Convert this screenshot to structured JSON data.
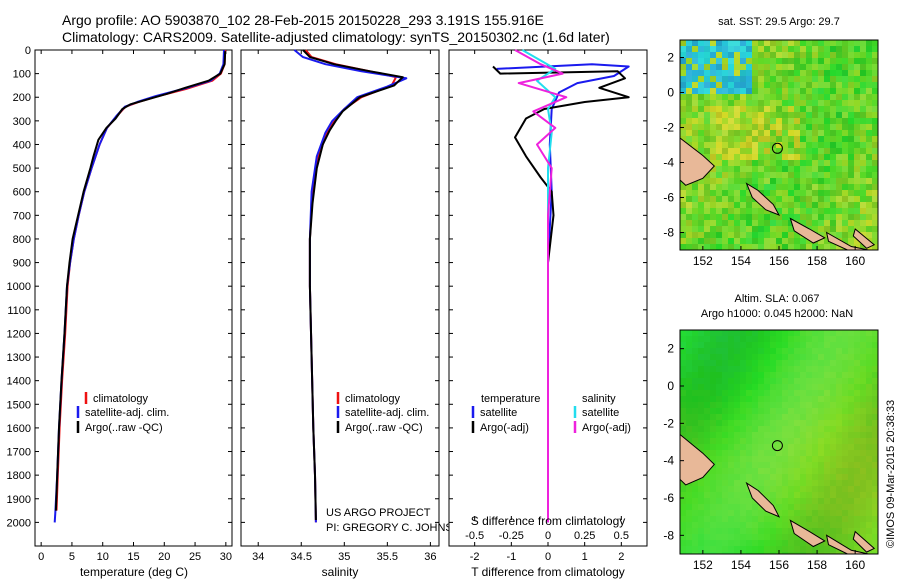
{
  "header": {
    "title_line1": "Argo profile: AO 5903870_102 28-Feb-2015 20150228_293 3.191S 155.916E",
    "title_line2": "Climatology: CARS2009. Satellite-adjusted climatology: synTS_20150302.nc (1.6d later)"
  },
  "credits": {
    "project": "US ARGO PROJECT",
    "pi": "PI: GREGORY C. JOHNSON",
    "stamp": "©IMOS 09-Mar-2015 20:38:33"
  },
  "colors": {
    "climatology": "#ee1111",
    "satellite": "#1a1aee",
    "argo": "#000000",
    "satellite_s": "#22ddee",
    "argo_s": "#ee22dd",
    "land": "#e8b898"
  },
  "chart_data": [
    {
      "type": "line",
      "id": "temperature",
      "xlabel": "temperature (deg C)",
      "ylabel": "",
      "xlim": [
        -1,
        31
      ],
      "ylim": [
        2100,
        0
      ],
      "xticks": [
        0,
        5,
        10,
        15,
        20,
        25,
        30
      ],
      "xtick_labels": [
        "0",
        "5",
        "10",
        "15",
        "20",
        "25",
        "30"
      ],
      "yticks": [
        0,
        100,
        200,
        300,
        400,
        500,
        600,
        700,
        800,
        900,
        1000,
        1100,
        1200,
        1300,
        1400,
        1500,
        1600,
        1700,
        1800,
        1900,
        2000
      ],
      "ytick_labels": [
        "0",
        "100",
        "200",
        "300",
        "400",
        "500",
        "600",
        "700",
        "800",
        "900",
        "1000",
        "1100",
        "1200",
        "1300",
        "1400",
        "1500",
        "1600",
        "1700",
        "1800",
        "1900",
        "2000"
      ],
      "legend": [
        "climatology",
        "satellite-adj. clim.",
        "Argo(..raw -QC)"
      ],
      "series": [
        {
          "name": "climatology",
          "color": "#ee1111",
          "points": [
            [
              29.9,
              0
            ],
            [
              29.8,
              60
            ],
            [
              29.2,
              100
            ],
            [
              27.8,
              130
            ],
            [
              23.5,
              165
            ],
            [
              19.0,
              195
            ],
            [
              15.8,
              220
            ],
            [
              13.7,
              240
            ],
            [
              12.3,
              280
            ],
            [
              10.7,
              330
            ],
            [
              9.5,
              400
            ],
            [
              8.2,
              500
            ],
            [
              7.0,
              600
            ],
            [
              6.1,
              700
            ],
            [
              5.3,
              800
            ],
            [
              4.7,
              900
            ],
            [
              4.3,
              1000
            ],
            [
              3.9,
              1200
            ],
            [
              3.4,
              1400
            ],
            [
              3.0,
              1600
            ],
            [
              2.7,
              1800
            ],
            [
              2.5,
              1950
            ]
          ]
        },
        {
          "name": "satellite-adj. clim.",
          "color": "#1a1aee",
          "points": [
            [
              29.7,
              0
            ],
            [
              29.6,
              60
            ],
            [
              29.0,
              100
            ],
            [
              27.5,
              130
            ],
            [
              23.0,
              165
            ],
            [
              18.6,
              195
            ],
            [
              15.6,
              220
            ],
            [
              13.6,
              240
            ],
            [
              12.2,
              280
            ],
            [
              10.7,
              330
            ],
            [
              9.5,
              400
            ],
            [
              8.2,
              500
            ],
            [
              7.0,
              600
            ],
            [
              6.1,
              700
            ],
            [
              5.3,
              800
            ],
            [
              4.7,
              900
            ],
            [
              4.2,
              1000
            ],
            [
              3.8,
              1200
            ],
            [
              3.3,
              1400
            ],
            [
              2.9,
              1600
            ],
            [
              2.6,
              1800
            ],
            [
              2.3,
              1960
            ],
            [
              2.2,
              2000
            ]
          ]
        },
        {
          "name": "Argo(..raw -QC)",
          "color": "#000000",
          "points": [
            [
              29.9,
              5
            ],
            [
              29.8,
              60
            ],
            [
              29.1,
              100
            ],
            [
              27.2,
              130
            ],
            [
              23.4,
              160
            ],
            [
              20.5,
              185
            ],
            [
              17.2,
              210
            ],
            [
              14.5,
              230
            ],
            [
              13.2,
              250
            ],
            [
              12.1,
              290
            ],
            [
              10.6,
              330
            ],
            [
              9.3,
              380
            ],
            [
              8.5,
              450
            ],
            [
              8.0,
              500
            ],
            [
              6.9,
              600
            ],
            [
              6.0,
              700
            ],
            [
              5.1,
              800
            ],
            [
              4.6,
              900
            ],
            [
              4.2,
              1000
            ],
            [
              3.8,
              1200
            ],
            [
              3.3,
              1400
            ],
            [
              2.9,
              1600
            ],
            [
              2.6,
              1800
            ],
            [
              2.4,
              1950
            ]
          ]
        }
      ]
    },
    {
      "type": "line",
      "id": "salinity",
      "xlabel": "salinity",
      "xlim": [
        33.8,
        36.1
      ],
      "ylim": [
        2100,
        0
      ],
      "xticks": [
        34,
        34.5,
        35,
        35.5,
        36
      ],
      "xtick_labels": [
        "34",
        "34.5",
        "35",
        "35.5",
        "36"
      ],
      "legend": [
        "climatology",
        "satellite-adj. clim.",
        "Argo(..raw -QC)"
      ],
      "series": [
        {
          "name": "climatology",
          "color": "#ee1111",
          "points": [
            [
              34.55,
              0
            ],
            [
              34.62,
              30
            ],
            [
              34.9,
              60
            ],
            [
              35.3,
              90
            ],
            [
              35.6,
              115
            ],
            [
              35.55,
              150
            ],
            [
              35.2,
              200
            ],
            [
              35.0,
              250
            ],
            [
              34.88,
              300
            ],
            [
              34.8,
              350
            ],
            [
              34.7,
              450
            ],
            [
              34.63,
              600
            ],
            [
              34.6,
              800
            ],
            [
              34.6,
              1000
            ],
            [
              34.62,
              1300
            ],
            [
              34.64,
              1600
            ],
            [
              34.66,
              1800
            ],
            [
              34.67,
              2000
            ]
          ]
        },
        {
          "name": "satellite-adj. clim.",
          "color": "#1a1aee",
          "points": [
            [
              34.42,
              0
            ],
            [
              34.52,
              30
            ],
            [
              34.78,
              60
            ],
            [
              35.2,
              90
            ],
            [
              35.72,
              120
            ],
            [
              35.5,
              155
            ],
            [
              35.15,
              200
            ],
            [
              35.0,
              250
            ],
            [
              34.86,
              300
            ],
            [
              34.78,
              350
            ],
            [
              34.68,
              450
            ],
            [
              34.62,
              600
            ],
            [
              34.6,
              800
            ],
            [
              34.6,
              1000
            ],
            [
              34.62,
              1300
            ],
            [
              34.64,
              1600
            ],
            [
              34.66,
              1800
            ],
            [
              34.67,
              2000
            ]
          ]
        },
        {
          "name": "Argo(..raw -QC)",
          "color": "#000000",
          "points": [
            [
              34.52,
              0
            ],
            [
              34.6,
              30
            ],
            [
              34.88,
              60
            ],
            [
              35.3,
              90
            ],
            [
              35.68,
              115
            ],
            [
              35.58,
              150
            ],
            [
              35.18,
              200
            ],
            [
              34.98,
              260
            ],
            [
              34.9,
              300
            ],
            [
              34.83,
              340
            ],
            [
              34.75,
              400
            ],
            [
              34.68,
              500
            ],
            [
              34.63,
              650
            ],
            [
              34.6,
              800
            ],
            [
              34.6,
              1000
            ],
            [
              34.62,
              1300
            ],
            [
              34.64,
              1600
            ],
            [
              34.66,
              1800
            ],
            [
              34.67,
              1990
            ]
          ]
        }
      ]
    },
    {
      "type": "line",
      "id": "difference",
      "xlabel_top": "S difference from climatology",
      "xlabel": "T difference from climatology",
      "xlim": [
        -2.7,
        2.7
      ],
      "ylim": [
        2100,
        0
      ],
      "xticks": [
        -2,
        -1,
        0,
        1,
        2
      ],
      "xtick_labels": [
        "-2",
        "-1",
        "0",
        "1",
        "2"
      ],
      "xticks_top": [
        -2,
        -1,
        0,
        1,
        2
      ],
      "xtick_labels_top": [
        "-0.5",
        "-0.25",
        "0",
        "0.25",
        "0.5"
      ],
      "legend_left_title": "temperature",
      "legend_right_title": "salinity",
      "legend": [
        "satellite",
        "Argo(-adj)",
        "satellite",
        "Argo(-adj)"
      ],
      "series": [
        {
          "name": "T satellite",
          "color": "#1a1aee",
          "points": [
            [
              -1.4,
              80
            ],
            [
              1.2,
              60
            ],
            [
              2.2,
              70
            ],
            [
              1.8,
              110
            ],
            [
              0.8,
              140
            ],
            [
              0.3,
              180
            ],
            [
              0.1,
              250
            ],
            [
              0.05,
              400
            ],
            [
              0.1,
              600
            ],
            [
              0.0,
              900
            ],
            [
              0.0,
              1400
            ],
            [
              0.0,
              2000
            ]
          ]
        },
        {
          "name": "T Argo(-adj)",
          "color": "#000000",
          "points": [
            [
              -1.5,
              70
            ],
            [
              -1.3,
              100
            ],
            [
              1.9,
              90
            ],
            [
              2.1,
              120
            ],
            [
              1.4,
              160
            ],
            [
              2.2,
              200
            ],
            [
              1.0,
              220
            ],
            [
              -0.1,
              250
            ],
            [
              -0.6,
              290
            ],
            [
              -0.9,
              370
            ],
            [
              -0.6,
              450
            ],
            [
              -0.2,
              540
            ],
            [
              0.1,
              600
            ],
            [
              0.15,
              700
            ],
            [
              0.0,
              900
            ],
            [
              0.0,
              1400
            ],
            [
              0.0,
              1995
            ]
          ]
        },
        {
          "name": "S satellite",
          "color": "#22ddee",
          "points": [
            [
              -0.7,
              0
            ],
            [
              0.2,
              80
            ],
            [
              -0.3,
              130
            ],
            [
              0.2,
              200
            ],
            [
              0.0,
              250
            ],
            [
              0.1,
              350
            ],
            [
              0.0,
              500
            ],
            [
              0.0,
              900
            ],
            [
              0.0,
              1400
            ],
            [
              0.0,
              2000
            ]
          ]
        },
        {
          "name": "S Argo(-adj)",
          "color": "#ee22dd",
          "points": [
            [
              -0.9,
              0
            ],
            [
              -0.2,
              60
            ],
            [
              0.4,
              100
            ],
            [
              -0.8,
              140
            ],
            [
              0.5,
              200
            ],
            [
              -0.4,
              260
            ],
            [
              0.2,
              330
            ],
            [
              -0.3,
              400
            ],
            [
              0.1,
              500
            ],
            [
              0.0,
              700
            ],
            [
              0.0,
              1000
            ],
            [
              0.0,
              1500
            ],
            [
              0.0,
              2000
            ]
          ]
        }
      ]
    },
    {
      "type": "heatmap",
      "id": "sst_map",
      "title": "sat. SST: 29.5 Argo: 29.7",
      "xlim": [
        150.8,
        161.2
      ],
      "ylim": [
        -9.0,
        3.0
      ],
      "xticks": [
        152,
        154,
        156,
        158,
        160
      ],
      "xtick_labels": [
        "152",
        "154",
        "156",
        "158",
        "160"
      ],
      "yticks": [
        2,
        0,
        -2,
        -4,
        -6,
        -8
      ],
      "ytick_labels": [
        "2",
        "0",
        "-2",
        "-4",
        "-6",
        "-8"
      ],
      "profile_location": [
        155.916,
        -3.191
      ]
    },
    {
      "type": "heatmap",
      "id": "sla_map",
      "title": "Altim. SLA: 0.067",
      "subtitle": "Argo h1000: 0.045 h2000: NaN",
      "xlim": [
        150.8,
        161.2
      ],
      "ylim": [
        -9.0,
        3.0
      ],
      "xticks": [
        152,
        154,
        156,
        158,
        160
      ],
      "xtick_labels": [
        "152",
        "154",
        "156",
        "158",
        "160"
      ],
      "yticks": [
        2,
        0,
        -2,
        -4,
        -6,
        -8
      ],
      "ytick_labels": [
        "2",
        "0",
        "-2",
        "-4",
        "-6",
        "-8"
      ],
      "profile_location": [
        155.916,
        -3.191
      ]
    }
  ]
}
